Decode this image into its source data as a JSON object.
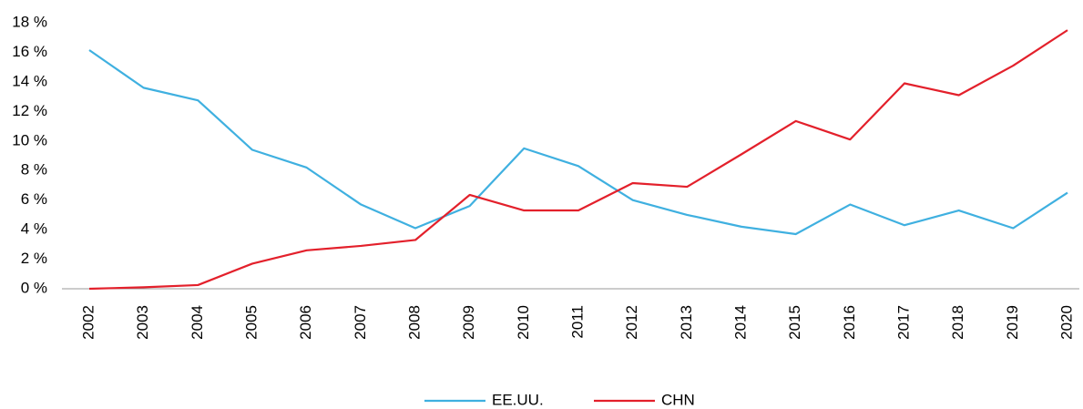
{
  "chart_data": {
    "type": "line",
    "categories": [
      "2002",
      "2003",
      "2004",
      "2005",
      "2006",
      "2007",
      "2008",
      "2009",
      "2010",
      "2011",
      "2012",
      "2013",
      "2014",
      "2015",
      "2016",
      "2017",
      "2018",
      "2019",
      "2020"
    ],
    "series": [
      {
        "name": "EE.UU.",
        "color": "#3fb0e0",
        "values": [
          16.15,
          13.6,
          12.75,
          9.4,
          8.2,
          5.7,
          4.1,
          5.6,
          9.5,
          8.3,
          6.0,
          5.0,
          4.2,
          3.7,
          5.7,
          4.3,
          5.3,
          4.1,
          6.5
        ]
      },
      {
        "name": "CHN",
        "color": "#e3202b",
        "values": [
          0,
          0.1,
          0.25,
          1.7,
          2.6,
          2.9,
          3.3,
          6.35,
          5.3,
          5.3,
          7.15,
          6.9,
          9.1,
          11.35,
          10.1,
          13.9,
          13.1,
          15.1,
          17.5
        ]
      }
    ],
    "ylim": [
      0,
      18
    ],
    "yticks": [
      {
        "value": 0,
        "label": "0 %"
      },
      {
        "value": 2,
        "label": "2 %"
      },
      {
        "value": 4,
        "label": "4 %"
      },
      {
        "value": 6,
        "label": "6 %"
      },
      {
        "value": 8,
        "label": "8 %"
      },
      {
        "value": 10,
        "label": "10 %"
      },
      {
        "value": 12,
        "label": "12 %"
      },
      {
        "value": 14,
        "label": "14 %"
      },
      {
        "value": 16,
        "label": "16 %"
      },
      {
        "value": 18,
        "label": "18 %"
      }
    ],
    "grid": false,
    "legend": "bottom"
  }
}
